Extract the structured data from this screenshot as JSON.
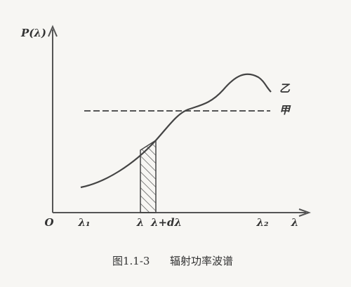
{
  "axes": {
    "y_label": "P(λ)",
    "origin": "O",
    "x_label": "λ"
  },
  "x_marks": [
    "λ₁",
    "λ",
    "λ+dλ",
    "λ₂"
  ],
  "curves": {
    "curve_b": "乙",
    "line_a": "甲"
  },
  "caption": {
    "number": "图1.1-3",
    "title": "辐射功率波谱"
  }
}
